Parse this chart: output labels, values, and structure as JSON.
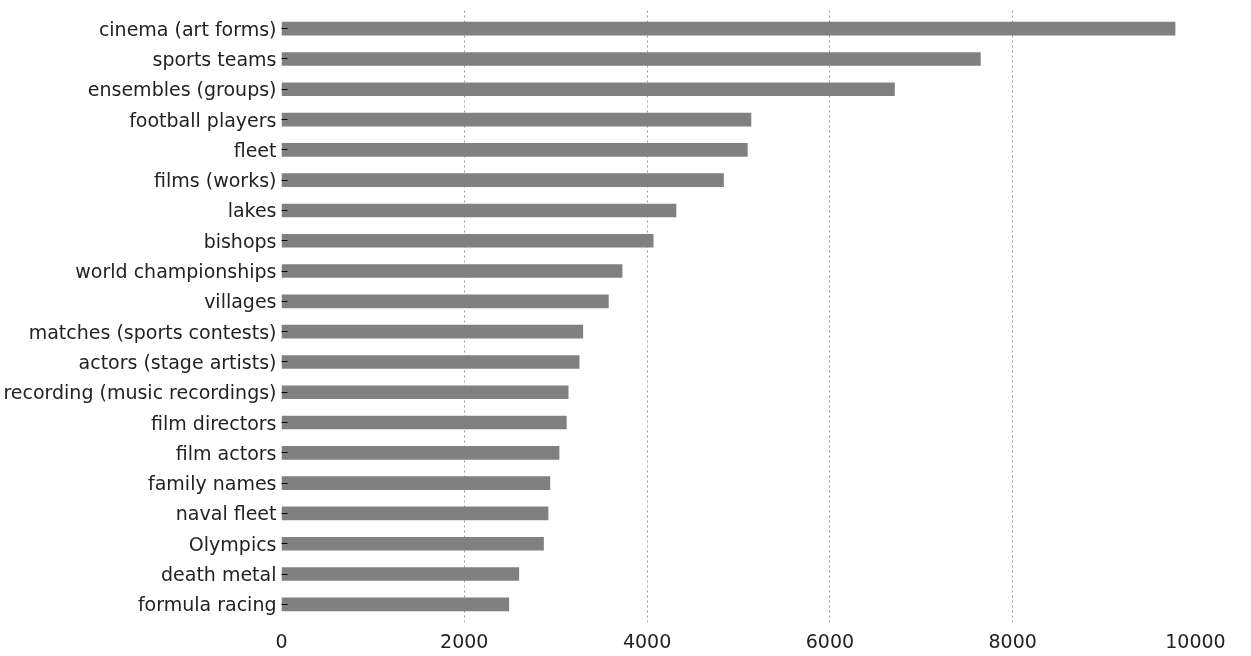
{
  "chart_data": {
    "type": "bar",
    "orientation": "horizontal",
    "categories": [
      "cinema (art forms)",
      "sports teams",
      "ensembles (groups)",
      "football players",
      "fleet",
      "films (works)",
      "lakes",
      "bishops",
      "world championships",
      "villages",
      "matches (sports contests)",
      "actors (stage artists)",
      "recording (music recordings)",
      "film directors",
      "film actors",
      "family names",
      "naval fleet",
      "Olympics",
      "death metal",
      "formula racing"
    ],
    "values": [
      9780,
      7650,
      6710,
      5140,
      5100,
      4840,
      4320,
      4070,
      3730,
      3580,
      3300,
      3260,
      3140,
      3120,
      3040,
      2940,
      2920,
      2870,
      2600,
      2490
    ],
    "color": "#808080",
    "xlim": [
      0,
      10000
    ],
    "xticks": [
      0,
      2000,
      4000,
      6000,
      8000,
      10000
    ],
    "grid": "x"
  }
}
